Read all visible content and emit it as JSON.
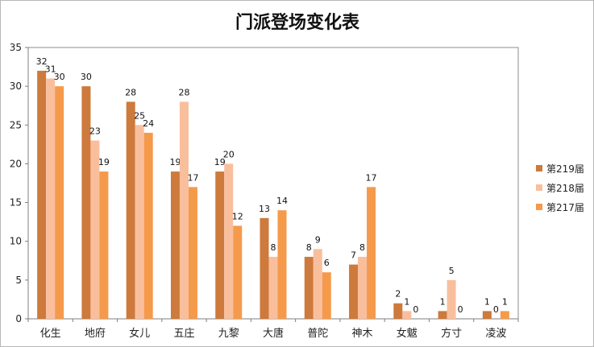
{
  "chart_data": {
    "type": "bar",
    "title": "门派登场变化表",
    "xlabel": "",
    "ylabel": "",
    "ylim": [
      0,
      35
    ],
    "yticks": [
      0,
      5,
      10,
      15,
      20,
      25,
      30,
      35
    ],
    "grid": false,
    "legend_position": "right",
    "categories": [
      "化生",
      "地府",
      "女儿",
      "五庄",
      "九黎",
      "大唐",
      "普陀",
      "神木",
      "女魃",
      "方寸",
      "凌波"
    ],
    "series": [
      {
        "name": "第219届",
        "color": "#cd7a3c",
        "values": [
          32,
          30,
          28,
          19,
          19,
          13,
          8,
          7,
          2,
          1,
          1
        ]
      },
      {
        "name": "第218届",
        "color": "#f9bf9d",
        "values": [
          31,
          23,
          25,
          28,
          20,
          8,
          9,
          8,
          1,
          5,
          0
        ]
      },
      {
        "name": "第217届",
        "color": "#f59a4b",
        "values": [
          30,
          19,
          24,
          17,
          12,
          14,
          6,
          17,
          0,
          0,
          1
        ]
      }
    ]
  }
}
